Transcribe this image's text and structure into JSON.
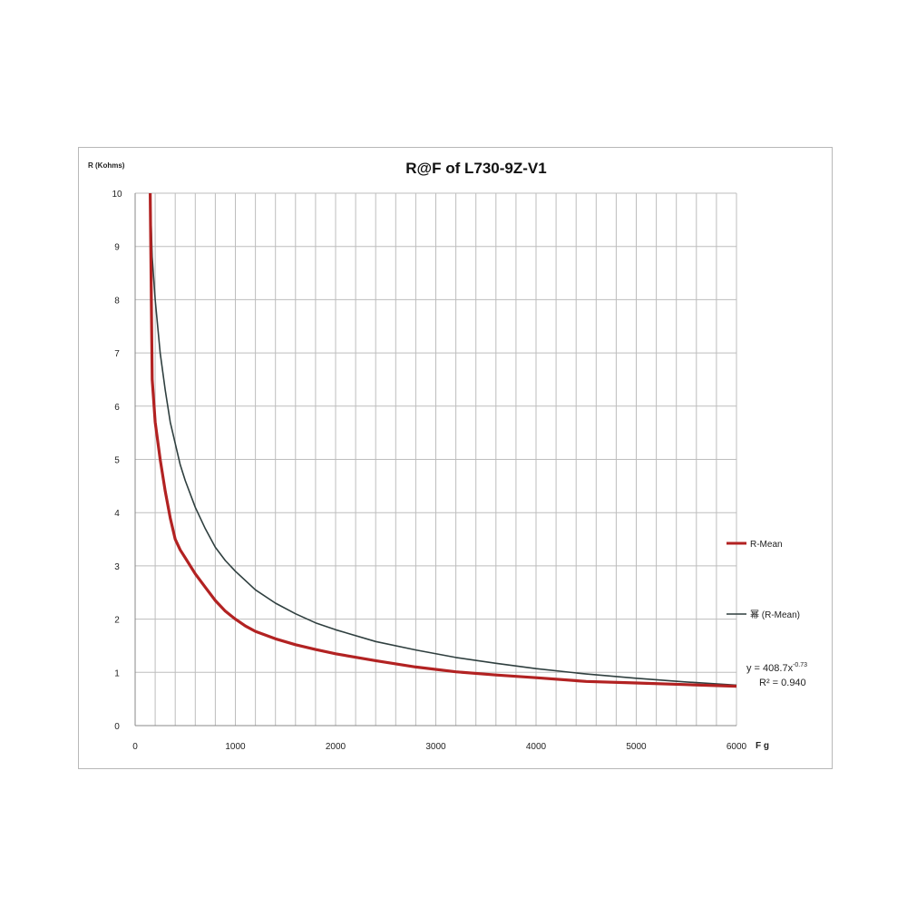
{
  "chart_data": {
    "type": "line",
    "title": "R@F of  L730-9Z-V1",
    "xlabel": "F g",
    "ylabel": "R (Kohms)",
    "xlim": [
      0,
      6000
    ],
    "ylim": [
      0,
      10
    ],
    "x_ticks": [
      0,
      1000,
      2000,
      3000,
      4000,
      5000,
      6000
    ],
    "y_ticks": [
      0,
      1,
      2,
      3,
      4,
      5,
      6,
      7,
      8,
      9,
      10
    ],
    "grid": true,
    "legend_position": "right",
    "series": [
      {
        "name": "R-Mean",
        "color": "#b22222",
        "x": [
          150,
          170,
          200,
          250,
          300,
          350,
          400,
          450,
          500,
          600,
          700,
          800,
          900,
          1000,
          1100,
          1200,
          1400,
          1600,
          1800,
          2000,
          2400,
          2800,
          3200,
          3600,
          4000,
          4500,
          5000,
          5500,
          6000
        ],
        "y": [
          10,
          6.5,
          5.7,
          5.0,
          4.4,
          3.9,
          3.5,
          3.3,
          3.15,
          2.85,
          2.6,
          2.35,
          2.15,
          2.0,
          1.87,
          1.77,
          1.63,
          1.52,
          1.43,
          1.35,
          1.22,
          1.1,
          1.01,
          0.95,
          0.9,
          0.83,
          0.8,
          0.77,
          0.74
        ]
      },
      {
        "name": "幂 (R-Mean)",
        "color": "#2f3f3f",
        "x": [
          150,
          170,
          200,
          250,
          300,
          350,
          400,
          450,
          500,
          600,
          700,
          800,
          900,
          1000,
          1200,
          1400,
          1600,
          1800,
          2000,
          2400,
          2800,
          3200,
          3600,
          4000,
          4500,
          5000,
          5500,
          6000
        ],
        "y": [
          10,
          8.8,
          8.0,
          7.0,
          6.3,
          5.7,
          5.3,
          4.9,
          4.6,
          4.1,
          3.7,
          3.35,
          3.1,
          2.9,
          2.55,
          2.3,
          2.1,
          1.93,
          1.8,
          1.58,
          1.42,
          1.28,
          1.17,
          1.07,
          0.97,
          0.89,
          0.82,
          0.76
        ]
      }
    ],
    "trendline_equation": "y = 408.7x",
    "trendline_exponent": "-0.73",
    "r_squared": "R² = 0.940"
  }
}
